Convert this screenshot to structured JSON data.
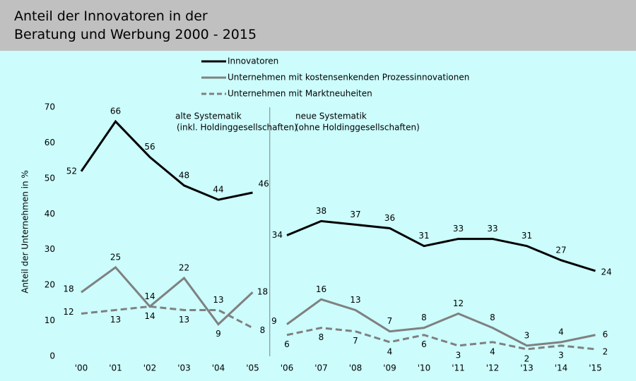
{
  "chart_data": {
    "type": "line",
    "title": "Anteil der Innovatoren in der Beratung und Werbung 2000 - 2015",
    "y_label": "Anteil der Unternehmen in %",
    "categories": [
      "'00",
      "'01",
      "'02",
      "'03",
      "'04",
      "'05",
      "'06",
      "'07",
      "'08",
      "'09",
      "'10",
      "'11",
      "'12",
      "'13",
      "'14",
      "'15"
    ],
    "series": [
      {
        "name": "Innovatoren",
        "color": "#000000",
        "dash": false,
        "values": [
          52,
          66,
          56,
          48,
          44,
          46,
          34,
          38,
          37,
          36,
          31,
          33,
          33,
          31,
          27,
          24
        ]
      },
      {
        "name": "Unternehmen mit kostensenkenden Prozessinnovationen",
        "color": "#808080",
        "dash": false,
        "values": [
          18,
          25,
          14,
          22,
          9,
          18,
          9,
          16,
          13,
          7,
          8,
          12,
          8,
          3,
          4,
          6
        ]
      },
      {
        "name": "Unternehmen mit Marktneuheiten",
        "color": "#808080",
        "dash": true,
        "values": [
          12,
          13,
          14,
          13,
          13,
          8,
          6,
          8,
          7,
          4,
          6,
          3,
          4,
          2,
          3,
          2
        ]
      }
    ],
    "annotations": [
      {
        "lines": [
          "alte Systematik",
          "(inkl. Holdinggesellschaften)"
        ]
      },
      {
        "lines": [
          "neue Systematik",
          "(ohne Holdinggesellschaften)"
        ]
      }
    ],
    "ylim": [
      0,
      70
    ],
    "yticks": [
      0,
      10,
      20,
      30,
      40,
      50,
      60,
      70
    ],
    "grid": false
  }
}
